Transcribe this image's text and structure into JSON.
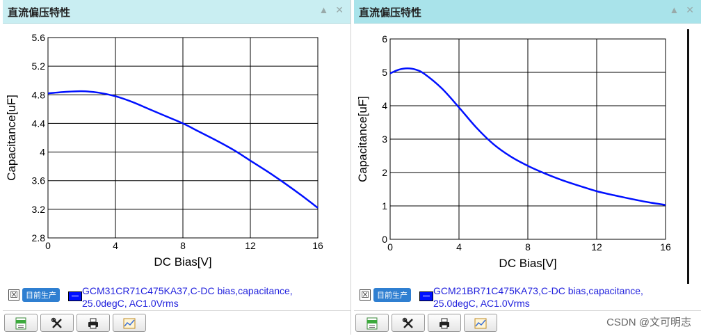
{
  "panels": [
    {
      "title": "直流偏压特性",
      "collapse_icon": "▲",
      "close_icon": "✕",
      "legend": {
        "checkbox": "☒",
        "badge": "目前生产",
        "text_line1": "GCM31CR71C475KA37,C-DC bias,capacitance,",
        "text_line2": "25.0degC, AC1.0Vrms",
        "color": "#0010ff"
      },
      "toolbar": [
        "csv-icon",
        "tools-icon",
        "print-icon",
        "chart-image-icon"
      ]
    },
    {
      "title": "直流偏压特性",
      "collapse_icon": "▲",
      "close_icon": "✕",
      "legend": {
        "checkbox": "☒",
        "badge": "目前生产",
        "text_line1": "GCM21BR71C475KA73,C-DC bias,capacitance,",
        "text_line2": "25.0degC, AC1.0Vrms",
        "color": "#0010ff"
      },
      "toolbar": [
        "csv-icon",
        "tools-icon",
        "print-icon",
        "chart-image-icon"
      ]
    }
  ],
  "watermark": "CSDN @文可明志",
  "chart_data": [
    {
      "type": "line",
      "xlabel": "DC Bias[V]",
      "ylabel": "Capacitance[uF]",
      "xlim": [
        0,
        16
      ],
      "ylim": [
        2.8,
        5.6
      ],
      "xticks": [
        "0",
        "4",
        "8",
        "12",
        "16"
      ],
      "yticks": [
        "2.8",
        "3.2",
        "3.6",
        "4",
        "4.4",
        "4.8",
        "5.2",
        "5.6"
      ],
      "grid": true,
      "series": [
        {
          "color": "#0010ff",
          "x": [
            0,
            1,
            2,
            3,
            4,
            5,
            6,
            7,
            8,
            9,
            10,
            11,
            12,
            13,
            14,
            15,
            16
          ],
          "y": [
            4.82,
            4.84,
            4.85,
            4.83,
            4.78,
            4.7,
            4.6,
            4.5,
            4.4,
            4.28,
            4.16,
            4.03,
            3.88,
            3.73,
            3.57,
            3.4,
            3.22
          ]
        }
      ]
    },
    {
      "type": "line",
      "xlabel": "DC Bias[V]",
      "ylabel": "Capacitance[uF]",
      "xlim": [
        0,
        16
      ],
      "ylim": [
        0,
        6
      ],
      "xticks": [
        "0",
        "4",
        "8",
        "12",
        "16"
      ],
      "yticks": [
        "0",
        "1",
        "2",
        "3",
        "4",
        "5",
        "6"
      ],
      "grid": true,
      "series": [
        {
          "color": "#0010ff",
          "x": [
            0,
            0.5,
            1,
            1.5,
            2,
            3,
            4,
            5,
            6,
            7,
            8,
            9,
            10,
            11,
            12,
            13,
            14,
            15,
            16
          ],
          "y": [
            4.97,
            5.08,
            5.12,
            5.08,
            4.95,
            4.52,
            3.95,
            3.35,
            2.85,
            2.48,
            2.2,
            1.97,
            1.77,
            1.6,
            1.44,
            1.32,
            1.21,
            1.11,
            1.03
          ]
        }
      ]
    }
  ]
}
